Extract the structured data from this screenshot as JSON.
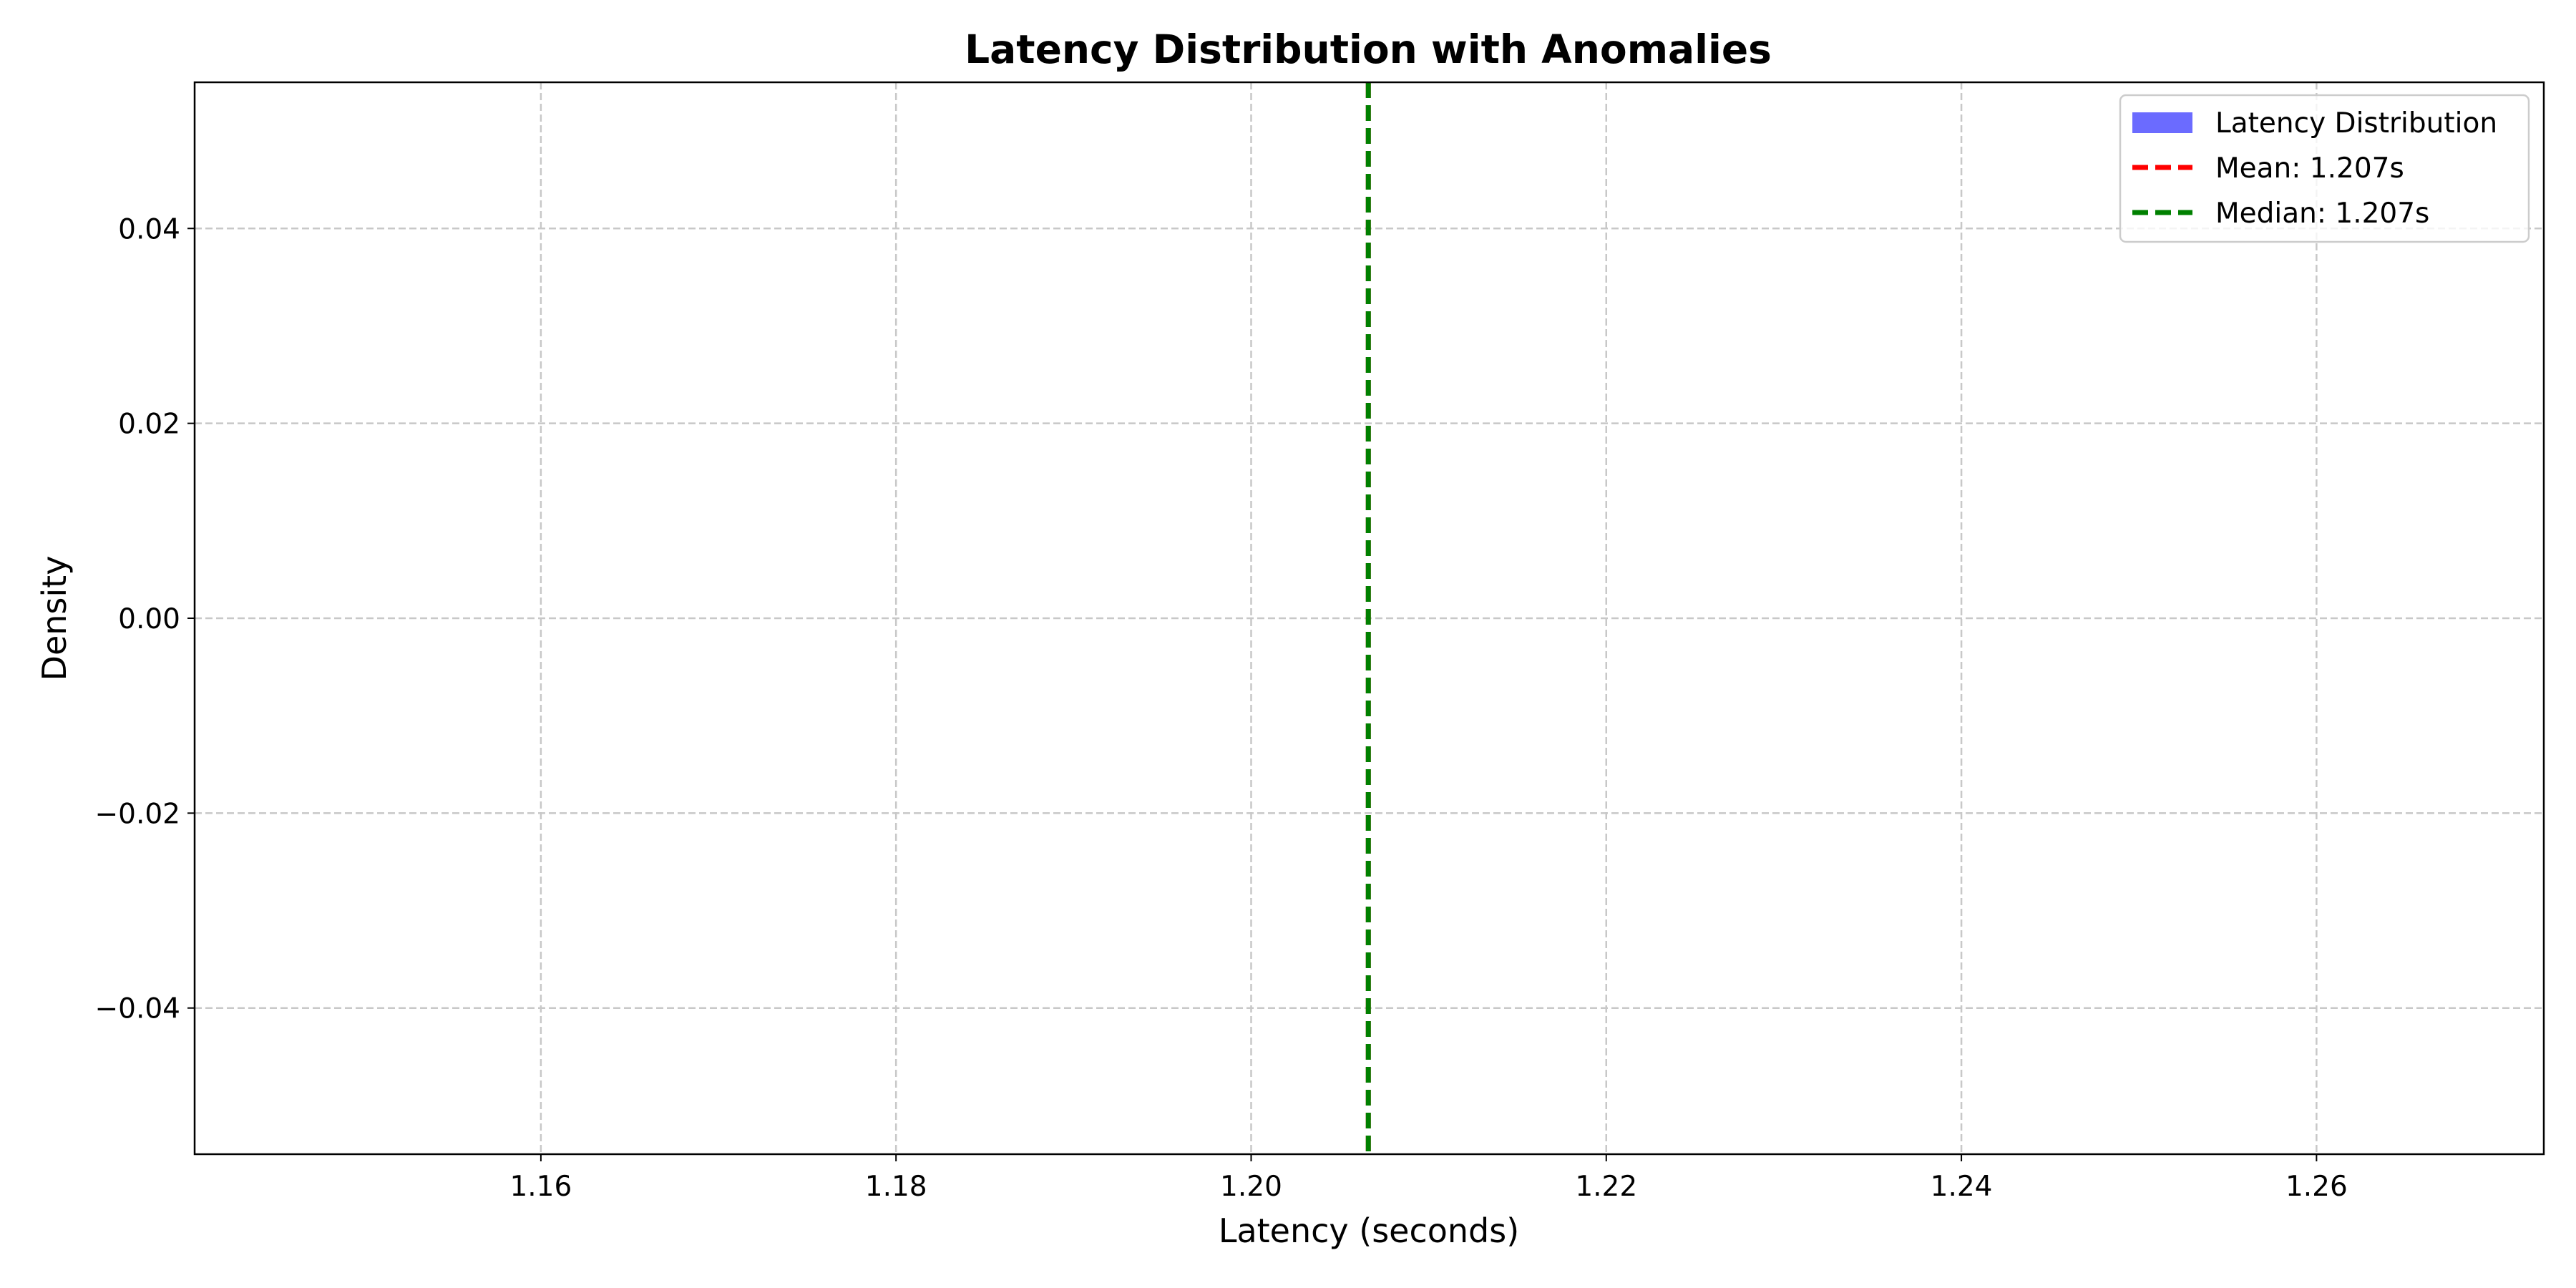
{
  "chart_data": {
    "type": "histogram",
    "title": "Latency Distribution with Anomalies",
    "xlabel": "Latency (seconds)",
    "ylabel": "Density",
    "xlim": [
      1.1405,
      1.2728
    ],
    "ylim": [
      -0.055,
      0.055
    ],
    "x_ticks": [
      {
        "value": 1.16,
        "label": "1.16"
      },
      {
        "value": 1.18,
        "label": "1.18"
      },
      {
        "value": 1.2,
        "label": "1.20"
      },
      {
        "value": 1.22,
        "label": "1.22"
      },
      {
        "value": 1.24,
        "label": "1.24"
      },
      {
        "value": 1.26,
        "label": "1.26"
      }
    ],
    "y_ticks": [
      {
        "value": 0.04,
        "label": "0.04"
      },
      {
        "value": 0.02,
        "label": "0.02"
      },
      {
        "value": 0.0,
        "label": "0.00"
      },
      {
        "value": -0.02,
        "label": "−0.02"
      },
      {
        "value": -0.04,
        "label": "−0.04"
      }
    ],
    "grid": true,
    "histogram_values": [],
    "reference_lines": [
      {
        "name": "Mean: 1.207s",
        "x": 1.2066,
        "color": "#ff0000",
        "style": "dashed"
      },
      {
        "name": "Median: 1.207s",
        "x": 1.2066,
        "color": "#008000",
        "style": "dashed"
      }
    ],
    "legend": {
      "position": "top-right",
      "entries": [
        {
          "label": "Latency Distribution",
          "kind": "patch",
          "color": "#6b6bff"
        },
        {
          "label": "Mean: 1.207s",
          "kind": "line",
          "color": "#ff0000"
        },
        {
          "label": "Median: 1.207s",
          "kind": "line",
          "color": "#008000"
        }
      ]
    }
  }
}
